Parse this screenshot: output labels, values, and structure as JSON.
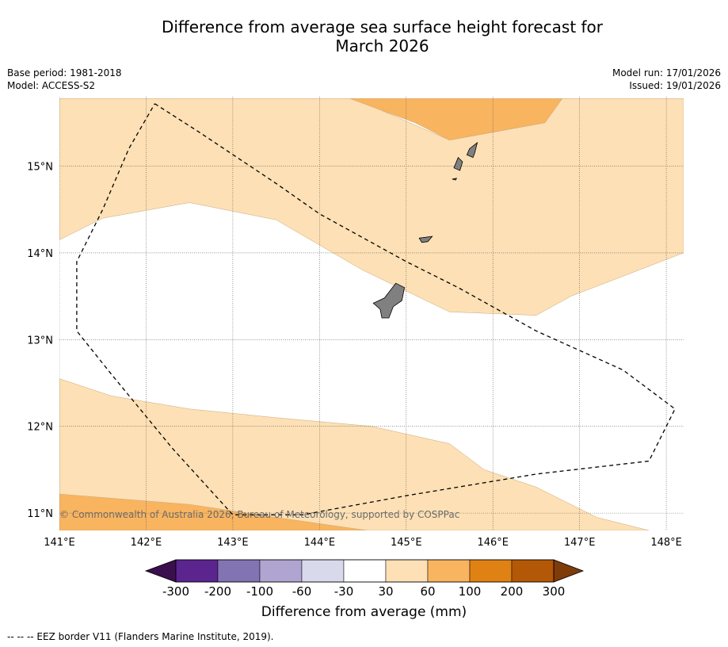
{
  "title": {
    "line1": "Difference from average sea surface height forecast for",
    "line2": "March 2026"
  },
  "meta": {
    "base_period": "Base period: 1981-2018",
    "model": "Model: ACCESS-S2",
    "model_run": "Model run: 17/01/2026",
    "issued": "Issued: 19/01/2026"
  },
  "map": {
    "lon_range": [
      141,
      148.2
    ],
    "lat_range": [
      10.8,
      15.8
    ],
    "lon_ticks": [
      141,
      142,
      143,
      144,
      145,
      146,
      147,
      148
    ],
    "lon_labels": [
      "141°E",
      "142°E",
      "143°E",
      "144°E",
      "145°E",
      "146°E",
      "147°E",
      "148°E"
    ],
    "lat_ticks": [
      11,
      12,
      13,
      14,
      15
    ],
    "lat_labels": [
      "11°N",
      "12°N",
      "13°N",
      "14°N",
      "15°N"
    ],
    "copyright": "© Commonwealth of Australia 2026, Bureau of Meteorology, supported by COSPPac",
    "regions": [
      {
        "name": "northwest-30-60",
        "category": "30 to 60 mm",
        "color": "#fde0b5",
        "lonlat": [
          [
            141,
            15.78
          ],
          [
            144.4,
            15.78
          ],
          [
            145.5,
            15.3
          ],
          [
            146.6,
            15.5
          ],
          [
            146.8,
            15.78
          ],
          [
            148.2,
            15.78
          ],
          [
            148.2,
            14.0
          ],
          [
            146.9,
            13.5
          ],
          [
            146.5,
            13.28
          ],
          [
            145.5,
            13.32
          ],
          [
            144.5,
            13.8
          ],
          [
            143.5,
            14.38
          ],
          [
            142.5,
            14.58
          ],
          [
            141.5,
            14.4
          ],
          [
            141,
            14.15
          ]
        ]
      },
      {
        "name": "north-60-100",
        "category": "60 to 100 mm",
        "color": "#f9b45f",
        "lonlat": [
          [
            144.35,
            15.78
          ],
          [
            146.8,
            15.78
          ],
          [
            146.6,
            15.5
          ],
          [
            145.5,
            15.3
          ],
          [
            145.1,
            15.5
          ]
        ]
      },
      {
        "name": "south-30-60",
        "category": "30 to 60 mm",
        "color": "#fde0b5",
        "lonlat": [
          [
            141,
            12.55
          ],
          [
            141.6,
            12.35
          ],
          [
            142.5,
            12.2
          ],
          [
            143.5,
            12.1
          ],
          [
            144.6,
            12.0
          ],
          [
            145.5,
            11.8
          ],
          [
            145.9,
            11.5
          ],
          [
            146.5,
            11.3
          ],
          [
            147.2,
            10.95
          ],
          [
            147.8,
            10.8
          ],
          [
            141,
            10.8
          ]
        ]
      },
      {
        "name": "southwest-60-100",
        "category": "60 to 100 mm",
        "color": "#f9b45f",
        "lonlat": [
          [
            141,
            11.22
          ],
          [
            142.5,
            11.1
          ],
          [
            143.5,
            10.95
          ],
          [
            144.55,
            10.8
          ],
          [
            141,
            10.8
          ]
        ]
      }
    ],
    "islands": [
      {
        "name": "guam",
        "lonlat": [
          [
            144.88,
            13.65
          ],
          [
            144.98,
            13.6
          ],
          [
            144.95,
            13.45
          ],
          [
            144.85,
            13.38
          ],
          [
            144.8,
            13.25
          ],
          [
            144.72,
            13.25
          ],
          [
            144.7,
            13.35
          ],
          [
            144.62,
            13.42
          ],
          [
            144.75,
            13.48
          ]
        ]
      },
      {
        "name": "rota",
        "lonlat": [
          [
            145.15,
            14.17
          ],
          [
            145.3,
            14.19
          ],
          [
            145.25,
            14.13
          ],
          [
            145.18,
            14.12
          ]
        ]
      },
      {
        "name": "tinian",
        "lonlat": [
          [
            145.6,
            15.1
          ],
          [
            145.65,
            15.05
          ],
          [
            145.62,
            14.95
          ],
          [
            145.55,
            14.98
          ]
        ]
      },
      {
        "name": "saipan",
        "lonlat": [
          [
            145.82,
            15.27
          ],
          [
            145.73,
            15.2
          ],
          [
            145.7,
            15.13
          ],
          [
            145.77,
            15.1
          ],
          [
            145.79,
            15.15
          ]
        ]
      },
      {
        "name": "aguijan",
        "lonlat": [
          [
            145.53,
            14.85
          ],
          [
            145.58,
            14.86
          ],
          [
            145.57,
            14.84
          ]
        ]
      }
    ],
    "eez_border": [
      [
        142.1,
        15.72
      ],
      [
        142.6,
        15.4
      ],
      [
        143.5,
        14.8
      ],
      [
        144.0,
        14.45
      ],
      [
        145.0,
        13.9
      ],
      [
        145.6,
        13.6
      ],
      [
        146.5,
        13.1
      ],
      [
        147.5,
        12.65
      ],
      [
        148.1,
        12.2
      ],
      [
        147.8,
        11.6
      ],
      [
        146.5,
        11.45
      ],
      [
        145.0,
        11.2
      ],
      [
        143.8,
        10.98
      ],
      [
        143.0,
        10.98
      ],
      [
        142.3,
        11.75
      ],
      [
        141.6,
        12.6
      ],
      [
        141.2,
        13.1
      ],
      [
        141.2,
        13.9
      ],
      [
        141.5,
        14.5
      ],
      [
        141.8,
        15.2
      ],
      [
        142.1,
        15.72
      ]
    ]
  },
  "colorbar": {
    "label": "Difference from average (mm)",
    "ticks": [
      "-300",
      "-200",
      "-100",
      "-60",
      "-30",
      "30",
      "60",
      "100",
      "200",
      "300"
    ],
    "bins": [
      {
        "label": "< -300",
        "color": "#3b0f4d"
      },
      {
        "label": "-300 to -200",
        "color": "#5b248e"
      },
      {
        "label": "-200 to -100",
        "color": "#8273b2"
      },
      {
        "label": "-100 to -60",
        "color": "#afa5d0"
      },
      {
        "label": "-60 to -30",
        "color": "#d9d9ec"
      },
      {
        "label": "-30 to 30",
        "color": "#ffffff"
      },
      {
        "label": "30 to 60",
        "color": "#fde0b5"
      },
      {
        "label": "60 to 100",
        "color": "#f9b45f"
      },
      {
        "label": "100 to 200",
        "color": "#e08114"
      },
      {
        "label": "200 to 300",
        "color": "#b35806"
      },
      {
        "label": "> 300",
        "color": "#7f3b08"
      }
    ]
  },
  "footnote": "--  --  -- EEZ border V11 (Flanders Marine Institute, 2019).",
  "colors": {
    "land": "#808080",
    "grid": "#555555",
    "eez": "#000000"
  }
}
